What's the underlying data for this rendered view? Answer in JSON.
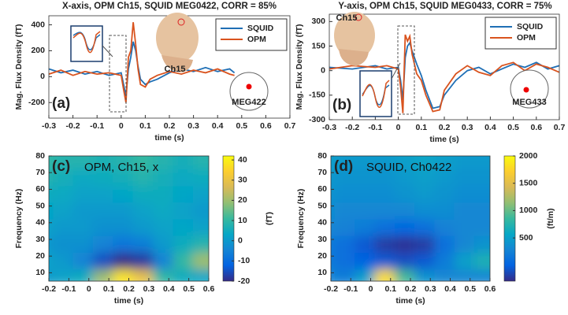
{
  "chart_data": [
    {
      "type": "line",
      "title": "X-axis, OPM Ch15, SQUID MEG0422, CORR = 85%",
      "panel_label": "(a)",
      "xlabel": "time (s)",
      "ylabel": "Mag. Flux Density (fT)",
      "x": [
        -0.3,
        -0.25,
        -0.2,
        -0.15,
        -0.1,
        -0.05,
        0,
        0.01,
        0.02,
        0.03,
        0.04,
        0.05,
        0.06,
        0.07,
        0.08,
        0.1,
        0.12,
        0.15,
        0.2,
        0.25,
        0.3,
        0.35,
        0.4,
        0.45,
        0.47
      ],
      "series": [
        {
          "name": "SQUID",
          "color": "#1f6fb5",
          "values": [
            60,
            30,
            50,
            20,
            40,
            10,
            30,
            -60,
            -150,
            60,
            150,
            270,
            200,
            80,
            -20,
            -60,
            -40,
            -20,
            30,
            60,
            40,
            70,
            40,
            60,
            30
          ]
        },
        {
          "name": "OPM",
          "color": "#d9531e",
          "values": [
            20,
            50,
            10,
            40,
            20,
            30,
            10,
            -100,
            -200,
            150,
            200,
            420,
            250,
            60,
            -60,
            -80,
            -20,
            10,
            40,
            20,
            50,
            30,
            60,
            20,
            10
          ]
        }
      ],
      "xlim": [
        -0.3,
        0.7
      ],
      "xticks": [
        -0.3,
        -0.2,
        -0.1,
        0,
        0.1,
        0.2,
        0.3,
        0.4,
        0.5,
        0.6,
        0.7
      ],
      "ylim": [
        -320,
        470
      ],
      "yticks": [
        -200,
        0,
        200,
        400
      ],
      "legend": "upper right",
      "annotations": [
        "Ch15",
        "MEG422"
      ]
    },
    {
      "type": "line",
      "title": "Y-axis, OPM Ch15, SQUID MEG0433, CORR = 75%",
      "panel_label": "(b)",
      "xlabel": "time (s)",
      "ylabel": "Mag. Flux Density (fT)",
      "x": [
        -0.3,
        -0.2,
        -0.1,
        -0.05,
        0,
        0.01,
        0.02,
        0.03,
        0.04,
        0.05,
        0.06,
        0.08,
        0.1,
        0.12,
        0.15,
        0.18,
        0.2,
        0.25,
        0.3,
        0.35,
        0.4,
        0.45,
        0.5,
        0.55,
        0.6,
        0.65,
        0.7
      ],
      "series": [
        {
          "name": "SQUID",
          "color": "#1f6fb5",
          "values": [
            20,
            10,
            30,
            10,
            20,
            -60,
            -180,
            80,
            150,
            170,
            120,
            40,
            -30,
            -120,
            -230,
            -220,
            -150,
            -60,
            0,
            20,
            -20,
            10,
            40,
            20,
            50,
            10,
            30
          ]
        },
        {
          "name": "OPM",
          "color": "#d9531e",
          "values": [
            10,
            30,
            20,
            30,
            10,
            -100,
            -260,
            220,
            180,
            210,
            100,
            -20,
            -60,
            -150,
            -250,
            -240,
            -120,
            -20,
            30,
            -10,
            -30,
            30,
            50,
            0,
            40,
            20,
            -10
          ]
        }
      ],
      "xlim": [
        -0.3,
        0.7
      ],
      "xticks": [
        -0.3,
        -0.2,
        -0.1,
        0,
        0.1,
        0.2,
        0.3,
        0.4,
        0.5,
        0.6,
        0.7
      ],
      "ylim": [
        -300,
        345
      ],
      "yticks": [
        -300,
        -150,
        0,
        150,
        300
      ],
      "legend": "upper right",
      "annotations": [
        "Ch15",
        "MEG433"
      ]
    },
    {
      "type": "heatmap",
      "title": "OPM, Ch15, x",
      "panel_label": "(c)",
      "xlabel": "time (s)",
      "ylabel": "Frequency (Hz)",
      "colormap": "parula",
      "x": [
        -0.2,
        -0.1,
        0,
        0.1,
        0.2,
        0.3,
        0.4,
        0.5,
        0.6
      ],
      "y": [
        10,
        20,
        30,
        40,
        50,
        60,
        70,
        80
      ],
      "z": [
        [
          0,
          2,
          5,
          20,
          38,
          30,
          10,
          5,
          3
        ],
        [
          2,
          0,
          -5,
          -15,
          -20,
          -18,
          -5,
          10,
          20
        ],
        [
          0,
          -2,
          -2,
          -5,
          -8,
          -6,
          0,
          5,
          8
        ],
        [
          2,
          0,
          0,
          -2,
          -2,
          0,
          2,
          3,
          2
        ],
        [
          3,
          2,
          0,
          0,
          0,
          2,
          4,
          2,
          0
        ],
        [
          5,
          4,
          2,
          2,
          3,
          5,
          5,
          3,
          2
        ],
        [
          8,
          6,
          4,
          5,
          6,
          8,
          6,
          4,
          5
        ],
        [
          10,
          8,
          8,
          7,
          8,
          10,
          8,
          6,
          8
        ]
      ],
      "xlim": [
        -0.2,
        0.6
      ],
      "xticks": [
        -0.2,
        -0.1,
        0,
        0.1,
        0.2,
        0.3,
        0.4,
        0.5,
        0.6
      ],
      "ylim": [
        5,
        80
      ],
      "yticks": [
        10,
        20,
        30,
        40,
        50,
        60,
        70,
        80
      ],
      "colorbar": {
        "label": "(fT)",
        "lim": [
          -20,
          42
        ],
        "ticks": [
          -20,
          -10,
          0,
          10,
          20,
          30,
          40
        ]
      }
    },
    {
      "type": "heatmap",
      "title": "SQUID, Ch0422",
      "panel_label": "(d)",
      "xlabel": "time (s)",
      "ylabel": "Frequency (Hz)",
      "colormap": "parula",
      "x": [
        -0.2,
        -0.1,
        0,
        0.1,
        0.2,
        0.3,
        0.4,
        0.5,
        0.6
      ],
      "y": [
        10,
        20,
        30,
        40,
        50,
        60,
        70,
        80
      ],
      "z": [
        [
          300,
          200,
          500,
          1800,
          900,
          400,
          300,
          300,
          300
        ],
        [
          200,
          100,
          0,
          -50,
          -100,
          -50,
          200,
          500,
          700
        ],
        [
          200,
          100,
          -50,
          -200,
          -250,
          -200,
          100,
          300,
          400
        ],
        [
          300,
          250,
          200,
          100,
          50,
          100,
          250,
          300,
          300
        ],
        [
          350,
          300,
          300,
          300,
          300,
          350,
          350,
          300,
          300
        ],
        [
          400,
          350,
          350,
          350,
          400,
          450,
          400,
          350,
          350
        ],
        [
          450,
          400,
          400,
          400,
          450,
          500,
          450,
          400,
          400
        ],
        [
          500,
          450,
          450,
          450,
          500,
          550,
          500,
          450,
          450
        ]
      ],
      "xlim": [
        -0.2,
        0.6
      ],
      "xticks": [
        -0.2,
        -0.1,
        0,
        0.1,
        0.2,
        0.3,
        0.4,
        0.5,
        0.6
      ],
      "ylim": [
        5,
        80
      ],
      "yticks": [
        10,
        20,
        30,
        40,
        50,
        60,
        70,
        80
      ],
      "colorbar": {
        "label": "(ft/m)",
        "lim": [
          -290,
          2000
        ],
        "ticks": [
          500,
          1000,
          1500,
          2000
        ]
      }
    }
  ]
}
